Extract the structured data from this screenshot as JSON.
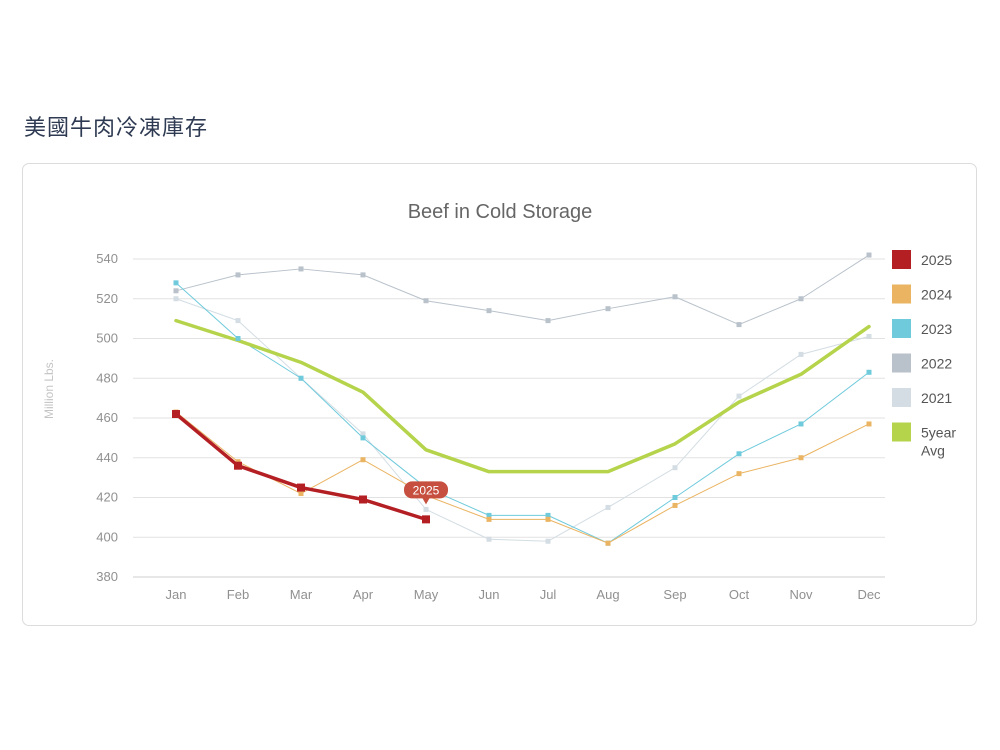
{
  "page": {
    "heading": "美國牛肉冷凍庫存"
  },
  "chart_data": {
    "type": "line",
    "title": "Beef in Cold Storage",
    "xlabel": "",
    "ylabel": "Million Lbs.",
    "categories": [
      "Jan",
      "Feb",
      "Mar",
      "Apr",
      "May",
      "Jun",
      "Jul",
      "Aug",
      "Sep",
      "Oct",
      "Nov",
      "Dec"
    ],
    "ylim": [
      380,
      550
    ],
    "yticks": [
      380,
      400,
      420,
      440,
      460,
      480,
      500,
      520,
      540
    ],
    "grid": "horizontal",
    "legend_position": "right",
    "series": [
      {
        "name": "2021",
        "color": "#d3dde3",
        "width": 1,
        "marker": true,
        "values": [
          520,
          509,
          480,
          452,
          414,
          399,
          398,
          415,
          435,
          471,
          492,
          501
        ]
      },
      {
        "name": "2022",
        "color": "#b9c2cb",
        "width": 1,
        "marker": true,
        "values": [
          524,
          532,
          535,
          532,
          519,
          514,
          509,
          515,
          521,
          507,
          520,
          542
        ]
      },
      {
        "name": "2023",
        "color": "#6fcadc",
        "width": 1,
        "marker": true,
        "values": [
          528,
          500,
          480,
          450,
          425,
          411,
          411,
          397,
          420,
          442,
          457,
          483
        ]
      },
      {
        "name": "2024",
        "color": "#eab462",
        "width": 1,
        "marker": true,
        "values": [
          463,
          438,
          422,
          439,
          421,
          409,
          409,
          397,
          416,
          432,
          440,
          457
        ]
      },
      {
        "name": "5year Avg",
        "color": "#b5d34b",
        "width": 3.5,
        "marker": false,
        "values": [
          509,
          499,
          488,
          473,
          444,
          433,
          433,
          433,
          447,
          468,
          482,
          506
        ]
      },
      {
        "name": "2025",
        "color": "#b41f24",
        "width": 3.5,
        "marker": true,
        "values": [
          462,
          436,
          425,
          419,
          409,
          null,
          null,
          null,
          null,
          null,
          null,
          null
        ]
      }
    ],
    "legend_order": [
      "2025",
      "2024",
      "2023",
      "2022",
      "2021",
      "5year Avg"
    ],
    "tooltip": {
      "series": "2025",
      "label": "2025",
      "category": "May",
      "color": "#c64f3f"
    }
  }
}
